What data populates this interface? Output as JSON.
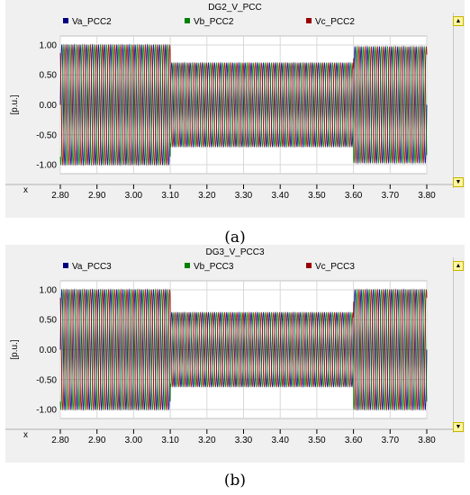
{
  "chart_data": [
    {
      "type": "line",
      "title": "DG2_V_PCC",
      "ylabel": "[p.u.]",
      "xlabel": "x",
      "xlim": [
        2.8,
        3.8
      ],
      "ylim": [
        -1.15,
        1.15
      ],
      "x_ticks": [
        "2.80",
        "2.90",
        "3.00",
        "3.10",
        "3.20",
        "3.30",
        "3.40",
        "3.50",
        "3.60",
        "3.70",
        "3.80"
      ],
      "y_ticks": [
        "1.00",
        "0.50",
        "0.00",
        "-0.50",
        "-1.00"
      ],
      "grid": true,
      "legend_placement": "top",
      "frequency_hz": 60,
      "series": [
        {
          "name": "Va_PCC2",
          "color": "#000080",
          "phase_deg": 0
        },
        {
          "name": "Vb_PCC2",
          "color": "#008000",
          "phase_deg": -120
        },
        {
          "name": "Vc_PCC2",
          "color": "#990000",
          "phase_deg": 120
        }
      ],
      "amplitude_profile": [
        {
          "t_start": 2.8,
          "t_end": 3.1,
          "amplitude": 1.0
        },
        {
          "t_start": 3.1,
          "t_end": 3.6,
          "amplitude": 0.7
        },
        {
          "t_start": 3.6,
          "t_end": 3.8,
          "amplitude": 0.97
        }
      ]
    },
    {
      "type": "line",
      "title": "DG3_V_PCC3",
      "ylabel": "[p.u.]",
      "xlabel": "x",
      "xlim": [
        2.8,
        3.8
      ],
      "ylim": [
        -1.15,
        1.15
      ],
      "x_ticks": [
        "2.80",
        "2.90",
        "3.00",
        "3.10",
        "3.20",
        "3.30",
        "3.40",
        "3.50",
        "3.60",
        "3.70",
        "3.80"
      ],
      "y_ticks": [
        "1.00",
        "0.50",
        "0.00",
        "-0.50",
        "-1.00"
      ],
      "grid": true,
      "legend_placement": "top",
      "frequency_hz": 60,
      "series": [
        {
          "name": "Va_PCC3",
          "color": "#000080",
          "phase_deg": 0
        },
        {
          "name": "Vb_PCC3",
          "color": "#008000",
          "phase_deg": -120
        },
        {
          "name": "Vc_PCC3",
          "color": "#990000",
          "phase_deg": 120
        }
      ],
      "amplitude_profile": [
        {
          "t_start": 2.8,
          "t_end": 3.1,
          "amplitude": 1.0
        },
        {
          "t_start": 3.1,
          "t_end": 3.6,
          "amplitude": 0.62
        },
        {
          "t_start": 3.6,
          "t_end": 3.8,
          "amplitude": 1.0
        }
      ]
    }
  ],
  "captions": {
    "a": "(a)",
    "b": "(b)"
  }
}
